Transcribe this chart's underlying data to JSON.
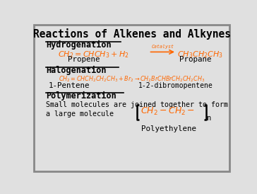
{
  "title": "Reactions of Alkenes and Alkynes",
  "bg_color": "#e0e0e0",
  "border_color": "#888888",
  "orange": "#ff6600",
  "black": "#000000",
  "hydro_label": "Hydrogenation",
  "hydro_name_left": "Propene",
  "hydro_name_right": "Propane",
  "halo_label": "Halogenation",
  "halo_name_left": "1-Pentene",
  "halo_name_right": "1-2-dibromopentene",
  "poly_label": "Polymerization",
  "poly_desc1": "Small molecules are joined together to form",
  "poly_desc2": "a large molecule",
  "poly_name": "Polyethylene"
}
